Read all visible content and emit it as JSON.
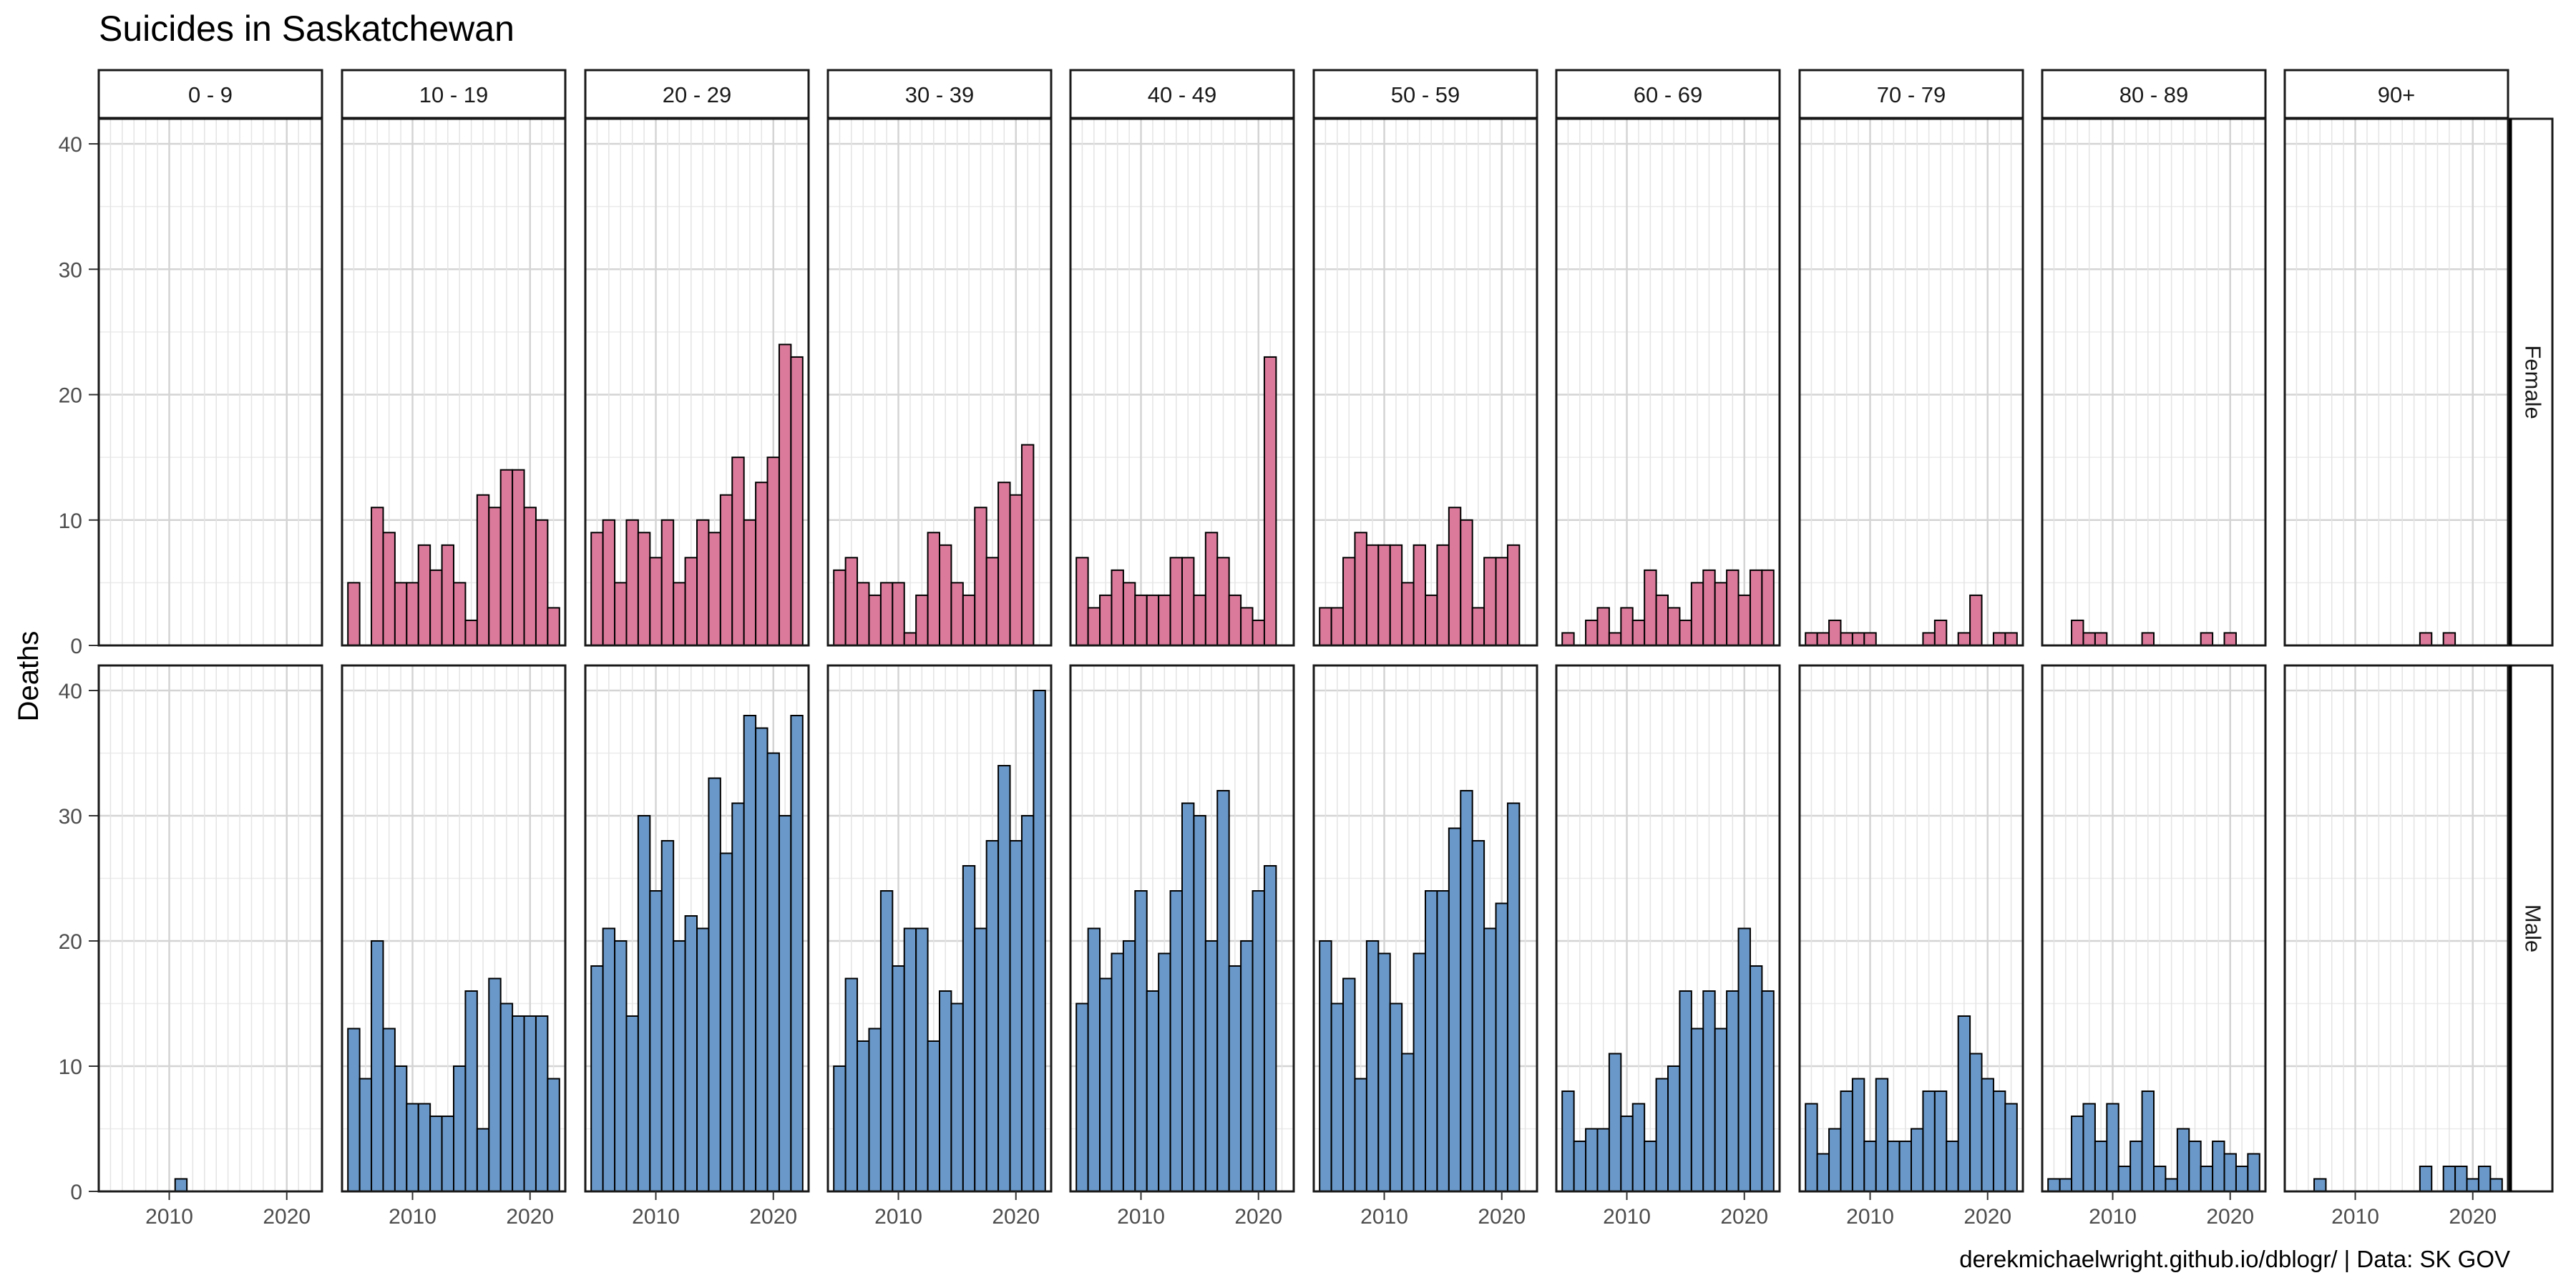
{
  "chart_data": {
    "type": "bar",
    "title": "Suicides in Saskatchewan",
    "ylabel": "Deaths",
    "xlabel": "",
    "caption": "derekmichaelwright.github.io/dblogr/ | Data: SK GOV",
    "years": [
      2005,
      2006,
      2007,
      2008,
      2009,
      2010,
      2011,
      2012,
      2013,
      2014,
      2015,
      2016,
      2017,
      2018,
      2019,
      2020,
      2021,
      2022
    ],
    "xlim": [
      2004,
      2023
    ],
    "x_ticks": [
      2010,
      2020
    ],
    "ylim": [
      0,
      42
    ],
    "y_ticks": [
      0,
      10,
      20,
      30,
      40
    ],
    "age_groups": [
      "0 - 9",
      "10 - 19",
      "20 - 29",
      "30 - 39",
      "40 - 49",
      "50 - 59",
      "60 - 69",
      "70 - 79",
      "80 - 89",
      "90+"
    ],
    "grid": true,
    "series": [
      {
        "name": "Female",
        "color": "#db7a9b",
        "values": [
          [
            0,
            0,
            0,
            0,
            0,
            0,
            0,
            0,
            0,
            0,
            0,
            0,
            0,
            0,
            0,
            0,
            0,
            0
          ],
          [
            5,
            0,
            11,
            9,
            5,
            5,
            8,
            6,
            8,
            5,
            2,
            12,
            11,
            14,
            14,
            11,
            10,
            3
          ],
          [
            9,
            10,
            5,
            10,
            9,
            7,
            10,
            5,
            7,
            10,
            9,
            12,
            15,
            10,
            13,
            15,
            24,
            23
          ],
          [
            6,
            7,
            5,
            4,
            5,
            5,
            1,
            4,
            9,
            8,
            5,
            4,
            11,
            7,
            13,
            12,
            16,
            0
          ],
          [
            7,
            3,
            4,
            6,
            5,
            4,
            4,
            4,
            7,
            7,
            4,
            9,
            7,
            4,
            3,
            2,
            23,
            0
          ],
          [
            3,
            3,
            7,
            9,
            8,
            8,
            8,
            5,
            8,
            4,
            8,
            11,
            10,
            3,
            7,
            7,
            8,
            0
          ],
          [
            1,
            0,
            2,
            3,
            1,
            3,
            2,
            6,
            4,
            3,
            2,
            5,
            6,
            5,
            6,
            4,
            6,
            6
          ],
          [
            1,
            1,
            2,
            1,
            1,
            1,
            0,
            0,
            0,
            0,
            1,
            2,
            0,
            1,
            4,
            0,
            1,
            1
          ],
          [
            0,
            0,
            2,
            1,
            1,
            0,
            0,
            0,
            1,
            0,
            0,
            0,
            0,
            1,
            0,
            1,
            0,
            0
          ],
          [
            0,
            0,
            0,
            0,
            0,
            0,
            0,
            0,
            0,
            0,
            0,
            1,
            0,
            1,
            0,
            0,
            0,
            0
          ]
        ]
      },
      {
        "name": "Male",
        "color": "#6a98c8",
        "values": [
          [
            0,
            0,
            0,
            0,
            0,
            0,
            1,
            0,
            0,
            0,
            0,
            0,
            0,
            0,
            0,
            0,
            0,
            0
          ],
          [
            13,
            9,
            20,
            13,
            10,
            7,
            7,
            6,
            6,
            10,
            16,
            5,
            17,
            15,
            14,
            14,
            14,
            9
          ],
          [
            18,
            21,
            20,
            14,
            30,
            24,
            28,
            20,
            22,
            21,
            33,
            27,
            31,
            38,
            37,
            35,
            30,
            38
          ],
          [
            10,
            17,
            12,
            13,
            24,
            18,
            21,
            21,
            12,
            16,
            15,
            26,
            21,
            28,
            34,
            28,
            30,
            40
          ],
          [
            15,
            21,
            17,
            19,
            20,
            24,
            16,
            19,
            24,
            31,
            30,
            20,
            32,
            18,
            20,
            24,
            26,
            0
          ],
          [
            20,
            15,
            17,
            9,
            20,
            19,
            15,
            11,
            19,
            24,
            24,
            29,
            32,
            28,
            21,
            23,
            31,
            0
          ],
          [
            8,
            4,
            5,
            5,
            11,
            6,
            7,
            4,
            9,
            10,
            16,
            13,
            16,
            13,
            16,
            21,
            18,
            16
          ],
          [
            7,
            3,
            5,
            8,
            9,
            4,
            9,
            4,
            4,
            5,
            8,
            8,
            4,
            14,
            11,
            9,
            8,
            7
          ],
          [
            1,
            1,
            6,
            7,
            4,
            7,
            2,
            4,
            8,
            2,
            1,
            5,
            4,
            2,
            4,
            3,
            2,
            3
          ],
          [
            0,
            0,
            1,
            0,
            0,
            0,
            0,
            0,
            0,
            0,
            0,
            2,
            0,
            2,
            2,
            1,
            2,
            1
          ]
        ]
      }
    ]
  }
}
